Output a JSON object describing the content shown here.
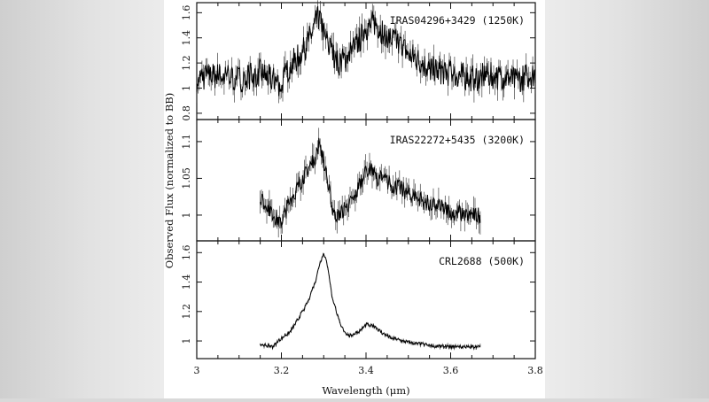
{
  "chart_data": {
    "type": "line",
    "xlabel": "Wavelength (μm)",
    "ylabel": "Observed Flux (normalized to BB)",
    "xlim": [
      3.0,
      3.8
    ],
    "x_ticks": [
      "3",
      "3.2",
      "3.4",
      "3.6",
      "3.8"
    ],
    "panels": [
      {
        "label": "IRAS04296+3429 (1250K)",
        "ylim": [
          0.75,
          1.68
        ],
        "y_ticks": [
          0.8,
          1,
          1.2,
          1.4,
          1.6
        ],
        "y_tick_labels": [
          "0.8",
          "1",
          "1.2",
          "1.4",
          "1.6"
        ],
        "series": [
          {
            "x": [
              3.0,
              3.05,
              3.1,
              3.15,
              3.2,
              3.22,
              3.25,
              3.27,
              3.28,
              3.29,
              3.3,
              3.31,
              3.33,
              3.35,
              3.38,
              3.4,
              3.42,
              3.44,
              3.46,
              3.5,
              3.55,
              3.6,
              3.65,
              3.7,
              3.75,
              3.8
            ],
            "y": [
              1.08,
              1.1,
              1.07,
              1.12,
              1.03,
              1.18,
              1.28,
              1.42,
              1.5,
              1.58,
              1.45,
              1.35,
              1.2,
              1.22,
              1.35,
              1.48,
              1.52,
              1.45,
              1.4,
              1.28,
              1.15,
              1.12,
              1.08,
              1.1,
              1.06,
              1.12
            ]
          }
        ]
      },
      {
        "label": "IRAS22272+5435 (3200K)",
        "ylim": [
          0.965,
          1.13
        ],
        "y_ticks": [
          1.0,
          1.05,
          1.1
        ],
        "y_tick_labels": [
          "1",
          "1.05",
          "1.1"
        ],
        "series": [
          {
            "x": [
              3.15,
              3.17,
              3.19,
              3.2,
              3.22,
              3.24,
              3.26,
              3.28,
              3.29,
              3.3,
              3.31,
              3.32,
              3.33,
              3.35,
              3.37,
              3.39,
              3.4,
              3.41,
              3.43,
              3.45,
              3.5,
              3.55,
              3.6,
              3.65,
              3.67
            ],
            "y": [
              1.02,
              1.01,
              0.995,
              0.99,
              1.02,
              1.04,
              1.06,
              1.08,
              1.1,
              1.075,
              1.04,
              1.01,
              1.0,
              1.01,
              1.02,
              1.05,
              1.065,
              1.06,
              1.05,
              1.045,
              1.03,
              1.015,
              1.005,
              1.0,
              1.0
            ]
          }
        ]
      },
      {
        "label": "CRL2688 (500K)",
        "ylim": [
          0.88,
          1.68
        ],
        "y_ticks": [
          1.0,
          1.2,
          1.4,
          1.6
        ],
        "y_tick_labels": [
          "1",
          "1.2",
          "1.4",
          "1.6"
        ],
        "series": [
          {
            "x": [
              3.15,
              3.18,
              3.2,
              3.22,
              3.24,
              3.26,
              3.28,
              3.29,
              3.3,
              3.31,
              3.32,
              3.34,
              3.36,
              3.38,
              3.4,
              3.42,
              3.44,
              3.46,
              3.5,
              3.55,
              3.6,
              3.65,
              3.67
            ],
            "y": [
              0.98,
              0.96,
              1.02,
              1.06,
              1.15,
              1.25,
              1.4,
              1.52,
              1.6,
              1.5,
              1.3,
              1.1,
              1.03,
              1.06,
              1.11,
              1.1,
              1.05,
              1.02,
              0.99,
              0.97,
              0.96,
              0.96,
              0.96
            ]
          }
        ]
      }
    ]
  }
}
